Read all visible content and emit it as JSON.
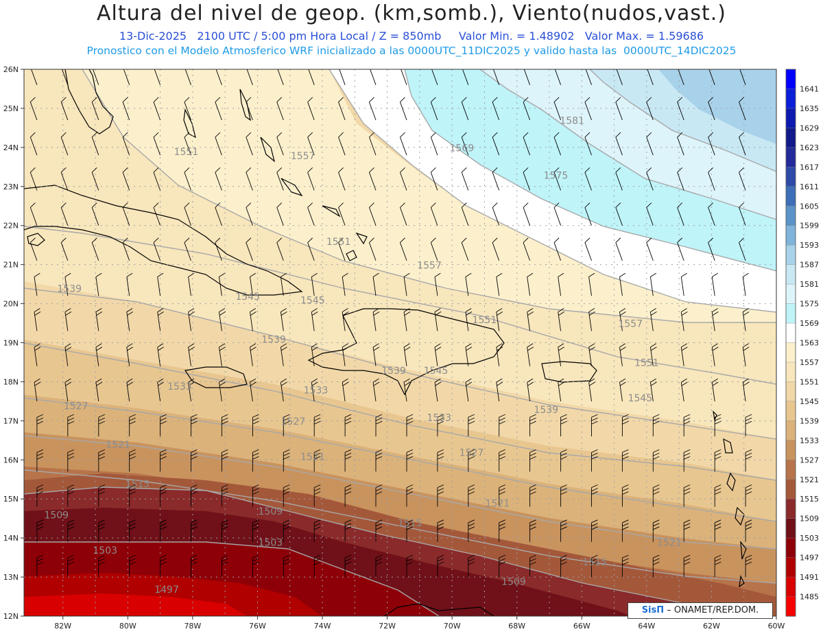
{
  "title": "Altura del nivel de geop. (km,somb.), Viento(nudos,vast.)",
  "subtitle": {
    "date": "13-Dic-2025",
    "time": "2100 UTC / 5:00 pm Hora Local / Z = 850mb",
    "min": "Valor Min. = 1.48902",
    "max": "Valor Max. = 1.59686"
  },
  "model_line": "Pronostico con el Modelo Atmosferico WRF inicializado a las 0000UTC_11DIC2025 y valido hasta las  0000UTC_14DIC2025",
  "credit": {
    "logo": "SisΠ",
    "text": "– ONAMET/REP.DOM."
  },
  "lat_labels": [
    "26N",
    "25N",
    "24N",
    "23N",
    "22N",
    "21N",
    "20N",
    "19N",
    "18N",
    "17N",
    "16N",
    "15N",
    "14N",
    "13N",
    "12N"
  ],
  "lon_labels": [
    "82W",
    "80W",
    "78W",
    "76W",
    "74W",
    "72W",
    "70W",
    "68W",
    "66W",
    "64W",
    "62W",
    "60W"
  ],
  "colorbar": {
    "levels": [
      "1641",
      "1635",
      "1629",
      "1623",
      "1617",
      "1611",
      "1605",
      "1599",
      "1593",
      "1587",
      "1581",
      "1575",
      "1569",
      "1563",
      "1557",
      "1551",
      "1545",
      "1539",
      "1533",
      "1527",
      "1521",
      "1515",
      "1509",
      "1503",
      "1497",
      "1491",
      "1485"
    ],
    "colors": [
      "#0000ff",
      "#0a1fd8",
      "#0c1ab0",
      "#101a8a",
      "#242a9a",
      "#2d4aa8",
      "#3d6fb8",
      "#5b93c8",
      "#80b4da",
      "#a8d2ea",
      "#c8e8f4",
      "#def4fb",
      "#bff4f9",
      "#ffffff",
      "#fcf0cc",
      "#f8e6bc",
      "#f2d8a8",
      "#e8c690",
      "#dbb27a",
      "#c9935e",
      "#b7744a",
      "#a4583a",
      "#8a2a2a",
      "#701018",
      "#8e0008",
      "#b00000",
      "#d80000",
      "#f80000"
    ]
  },
  "contour_labels": [
    {
      "text": "1551",
      "lon": -78.2,
      "lat": 23.8
    },
    {
      "text": "1557",
      "lon": -74.6,
      "lat": 23.7
    },
    {
      "text": "1569",
      "lon": -69.7,
      "lat": 23.9
    },
    {
      "text": "1581",
      "lon": -66.3,
      "lat": 24.6
    },
    {
      "text": "1575",
      "lon": -66.8,
      "lat": 23.2
    },
    {
      "text": "1551",
      "lon": -73.5,
      "lat": 21.5
    },
    {
      "text": "1557",
      "lon": -70.7,
      "lat": 20.9
    },
    {
      "text": "1539",
      "lon": -81.8,
      "lat": 20.3
    },
    {
      "text": "1545",
      "lon": -76.3,
      "lat": 20.1
    },
    {
      "text": "1545",
      "lon": -74.3,
      "lat": 20.0
    },
    {
      "text": "1551",
      "lon": -69.0,
      "lat": 19.5
    },
    {
      "text": "1557",
      "lon": -64.5,
      "lat": 19.4
    },
    {
      "text": "1539",
      "lon": -75.5,
      "lat": 19.0
    },
    {
      "text": "1551",
      "lon": -64.0,
      "lat": 18.4
    },
    {
      "text": "1533",
      "lon": -78.4,
      "lat": 17.8
    },
    {
      "text": "1533",
      "lon": -74.2,
      "lat": 17.7
    },
    {
      "text": "1539",
      "lon": -71.8,
      "lat": 18.2
    },
    {
      "text": "1545",
      "lon": -70.5,
      "lat": 18.2
    },
    {
      "text": "1545",
      "lon": -64.2,
      "lat": 17.5
    },
    {
      "text": "1539",
      "lon": -67.1,
      "lat": 17.2
    },
    {
      "text": "1527",
      "lon": -81.6,
      "lat": 17.3
    },
    {
      "text": "1527",
      "lon": -74.9,
      "lat": 16.9
    },
    {
      "text": "1533",
      "lon": -70.4,
      "lat": 17.0
    },
    {
      "text": "1521",
      "lon": -80.3,
      "lat": 16.3
    },
    {
      "text": "1521",
      "lon": -74.3,
      "lat": 16.0
    },
    {
      "text": "1527",
      "lon": -69.4,
      "lat": 16.1
    },
    {
      "text": "1515",
      "lon": -79.7,
      "lat": 15.3
    },
    {
      "text": "1521",
      "lon": -68.6,
      "lat": 14.8
    },
    {
      "text": "1509",
      "lon": -82.2,
      "lat": 14.5
    },
    {
      "text": "1509",
      "lon": -75.6,
      "lat": 14.6
    },
    {
      "text": "1515",
      "lon": -71.3,
      "lat": 14.3
    },
    {
      "text": "1503",
      "lon": -80.7,
      "lat": 13.6
    },
    {
      "text": "1503",
      "lon": -75.6,
      "lat": 13.8
    },
    {
      "text": "1521",
      "lon": -63.3,
      "lat": 13.8
    },
    {
      "text": "1515",
      "lon": -65.6,
      "lat": 13.3
    },
    {
      "text": "1509",
      "lon": -68.1,
      "lat": 12.8
    },
    {
      "text": "1497",
      "lon": -78.8,
      "lat": 12.6
    }
  ]
}
